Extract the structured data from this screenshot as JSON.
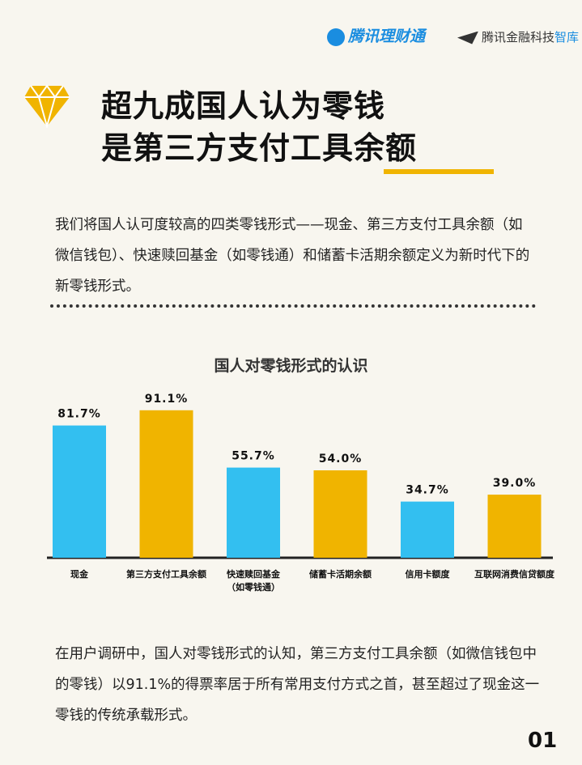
{
  "header": {
    "logo_left": "腾讯理财通",
    "logo_right": "腾讯金融科技",
    "logo_right_accent": "智库"
  },
  "title": {
    "line1": "超九成国人认为零钱",
    "line2": "是第三方支付工具余额"
  },
  "intro": "我们将国人认可度较高的四类零钱形式——现金、第三方支付工具余额（如微信钱包）、快速赎回基金（如零钱通）和储蓄卡活期余额定义为新时代下的新零钱形式。",
  "chart_data": {
    "type": "bar",
    "title": "国人对零钱形式的认识",
    "categories": [
      "现金",
      "第三方支付工具余额",
      "快速赎回基金\n（如零钱通）",
      "储蓄卡活期余额",
      "信用卡额度",
      "互联网消费信贷额度"
    ],
    "values": [
      81.7,
      91.1,
      55.7,
      54.0,
      34.7,
      39.0
    ],
    "value_labels": [
      "81.7%",
      "91.1%",
      "55.7%",
      "54.0%",
      "34.7%",
      "39.0%"
    ],
    "colors": [
      "#33bff0",
      "#f0b400",
      "#33bff0",
      "#f0b400",
      "#33bff0",
      "#f0b400"
    ]
  },
  "conclusion": "在用户调研中，国人对零钱形式的认知，第三方支付工具余额（如微信钱包中的零钱）以91.1%的得票率居于所有常用支付方式之首，甚至超过了现金这一零钱的传统承载形式。",
  "page_number": "01"
}
